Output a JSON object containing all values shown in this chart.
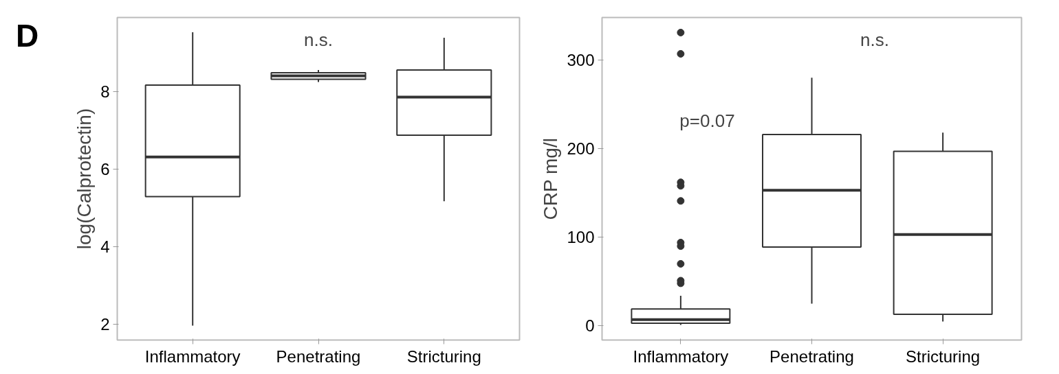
{
  "chart_data": [
    {
      "type": "box",
      "title": "D",
      "ylabel": "log(Calprotectin)",
      "categories": [
        "Inflammatory",
        "Penetrating",
        "Stricturing"
      ],
      "boxes": [
        {
          "low": 1.97,
          "q1": 5.29,
          "median": 6.31,
          "q3": 8.16,
          "high": 9.52
        },
        {
          "low": 8.24,
          "q1": 8.31,
          "median": 8.4,
          "q3": 8.48,
          "high": 8.55
        },
        {
          "low": 5.17,
          "q1": 6.87,
          "median": 7.85,
          "q3": 8.55,
          "high": 9.38
        }
      ],
      "ylim": [
        1.6,
        9.9
      ],
      "yticks": [
        2,
        4,
        6,
        8
      ],
      "grid": false,
      "annotations": [
        "n.s."
      ]
    },
    {
      "type": "box",
      "ylabel": "CRP mg/l",
      "categories": [
        "Inflammatory",
        "Penetrating",
        "Stricturing"
      ],
      "boxes": [
        {
          "low": 1,
          "q1": 3,
          "median": 7,
          "q3": 19,
          "high": 34,
          "outliers": [
            331,
            307,
            162,
            158,
            141,
            94,
            90,
            70,
            51,
            48
          ]
        },
        {
          "low": 25,
          "q1": 89,
          "median": 153,
          "q3": 216,
          "high": 280
        },
        {
          "low": 5,
          "q1": 13,
          "median": 103,
          "q3": 197,
          "high": 218
        }
      ],
      "ylim": [
        -16,
        348
      ],
      "yticks": [
        0,
        100,
        200,
        300
      ],
      "grid": false,
      "annotations": [
        "n.s.",
        "p=0.07"
      ]
    }
  ]
}
